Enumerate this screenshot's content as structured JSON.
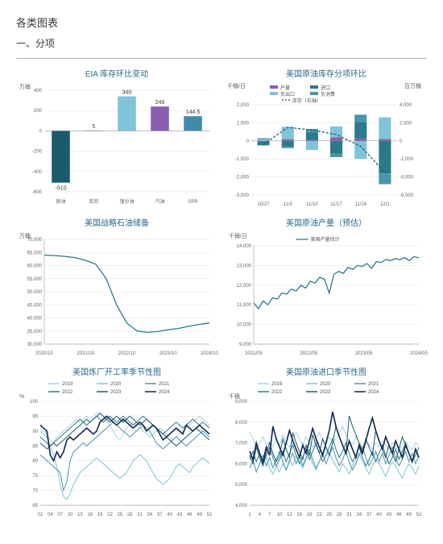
{
  "page": {
    "title": "各类图表",
    "section": "一、分项"
  },
  "colors": {
    "teal_dark": "#1a5a6e",
    "teal": "#3d8ba8",
    "teal_light": "#7fc4d8",
    "purple": "#8a5fb0",
    "navy": "#0f2850",
    "grid": "#e0e0e0",
    "axis": "#888"
  },
  "chart1": {
    "title": "EIA 库存环比变动",
    "ylabel": "万桶",
    "categories": [
      "原油",
      "库欣",
      "馏分油",
      "汽油",
      "SPR"
    ],
    "values": [
      -510,
      5,
      340,
      240,
      144.5
    ],
    "colors": [
      "#1a5a6e",
      "#3d8ba8",
      "#7fc4d8",
      "#8a5fb0",
      "#3d8ba8"
    ],
    "ylim": [
      -600,
      400
    ],
    "ytick_step": 200
  },
  "chart2": {
    "title": "美国原油库存分项环比",
    "ylabel_left": "千桶/日",
    "ylabel_right": "百万桶",
    "legend": [
      "产量",
      "进口",
      "负出口",
      "负消费",
      "库存（右轴）"
    ],
    "legend_colors": [
      "#8a5fb0",
      "#2a7a8a",
      "#7fc4d8",
      "#4a94ac",
      "#1a5a6e"
    ],
    "x_labels": [
      "10/27",
      "11/3",
      "11/10",
      "11/17",
      "11/24",
      "12/1"
    ],
    "ylim_left": [
      -3000,
      2000
    ],
    "ytick_left": 1000,
    "ylim_right": [
      -6000,
      4000
    ],
    "ytick_right": 2000,
    "series_prod": [
      -50,
      80,
      60,
      200,
      150,
      100
    ],
    "series_import": [
      -200,
      -300,
      400,
      -700,
      900,
      -1800
    ],
    "series_negexp": [
      100,
      700,
      -500,
      600,
      -1000,
      1200
    ],
    "series_negcons": [
      50,
      -100,
      200,
      -200,
      400,
      -600
    ],
    "inventory_right": [
      -400,
      1500,
      1200,
      700,
      -600,
      -3500
    ]
  },
  "chart3": {
    "title": "美国战略石油储备",
    "ylabel": "万桶",
    "ylim": [
      30000,
      70000
    ],
    "ytick_step": 5000,
    "x_labels": [
      "2020/10",
      "2021/10",
      "2022/10",
      "2023/10",
      "2024/10"
    ],
    "color": "#2a7a8a",
    "data": [
      64000,
      63800,
      63500,
      63000,
      62000,
      60500,
      55000,
      45000,
      38000,
      35000,
      34500,
      34800,
      35500,
      36000,
      36800,
      37500,
      38100
    ]
  },
  "chart4": {
    "title": "美国原油产量（预估）",
    "ylabel": "千桶/日",
    "legend": [
      "美国产量估计"
    ],
    "ylim": [
      9000,
      14000
    ],
    "ytick_step": 1000,
    "x_labels": [
      "2021/05",
      "2022/05",
      "2023/05",
      "2024/05"
    ],
    "color": "#2a7a8a",
    "data": [
      11100,
      10800,
      11200,
      11000,
      11350,
      11300,
      11600,
      11550,
      11800,
      11700,
      12000,
      11850,
      12200,
      12100,
      12400,
      12300,
      11600,
      12550,
      12700,
      12600,
      12900,
      12800,
      13000,
      12950,
      13100,
      12850,
      13200,
      13150,
      13300,
      13250,
      13350,
      13300,
      13400,
      13250,
      13450,
      13380
    ]
  },
  "chart5": {
    "title": "美国炼厂开工率季节性图",
    "ylabel": "%",
    "legend": [
      "2019",
      "2020",
      "2021",
      "2022",
      "2023",
      "2024"
    ],
    "legend_colors": [
      "#a8d5e0",
      "#7fc4d8",
      "#4a94ac",
      "#2a7a8a",
      "#1a5a6e",
      "#0f2850"
    ],
    "ylim": [
      65,
      100
    ],
    "ytick_step": 5,
    "x_labels": [
      "01",
      "04",
      "07",
      "10",
      "13",
      "16",
      "19",
      "22",
      "25",
      "28",
      "31",
      "34",
      "37",
      "40",
      "43",
      "46",
      "49",
      "52"
    ],
    "series": {
      "2019": [
        91,
        90,
        89,
        87,
        86,
        88,
        89,
        90,
        91,
        92,
        93,
        94,
        93,
        94,
        95,
        94,
        95,
        96,
        96,
        95,
        93,
        92,
        90,
        88,
        87,
        89,
        91,
        92,
        93,
        92,
        91,
        90,
        89,
        88,
        89,
        90,
        91,
        90,
        89,
        88,
        87,
        88,
        89,
        90,
        91,
        92,
        93,
        94,
        95,
        94,
        93,
        92
      ],
      "2020": [
        90,
        89,
        88,
        85,
        82,
        78,
        72,
        68,
        67,
        69,
        72,
        74,
        76,
        77,
        78,
        79,
        80,
        81,
        80,
        79,
        78,
        77,
        76,
        75,
        74,
        75,
        76,
        78,
        80,
        81,
        82,
        81,
        80,
        78,
        76,
        74,
        73,
        72,
        73,
        74,
        76,
        78,
        79,
        78,
        77,
        76,
        78,
        79,
        80,
        81,
        80,
        79
      ],
      "2021": [
        82,
        81,
        80,
        79,
        78,
        77,
        76,
        70,
        73,
        80,
        83,
        84,
        85,
        86,
        85,
        86,
        87,
        88,
        89,
        90,
        91,
        92,
        93,
        92,
        91,
        90,
        89,
        88,
        89,
        90,
        91,
        92,
        91,
        90,
        88,
        86,
        85,
        84,
        85,
        86,
        87,
        88,
        87,
        86,
        85,
        86,
        87,
        88,
        89,
        90,
        89,
        88
      ],
      "2022": [
        88,
        87,
        86,
        85,
        86,
        87,
        88,
        89,
        90,
        91,
        92,
        93,
        94,
        93,
        92,
        93,
        94,
        95,
        94,
        93,
        94,
        95,
        94,
        93,
        94,
        95,
        94,
        93,
        92,
        93,
        94,
        95,
        94,
        93,
        92,
        91,
        90,
        89,
        90,
        91,
        92,
        93,
        92,
        91,
        92,
        93,
        94,
        93,
        92,
        93,
        92,
        91
      ],
      "2023": [
        86,
        85,
        84,
        85,
        86,
        85,
        86,
        87,
        88,
        89,
        90,
        91,
        92,
        93,
        94,
        93,
        94,
        95,
        96,
        95,
        94,
        93,
        94,
        95,
        94,
        93,
        94,
        95,
        94,
        93,
        92,
        93,
        94,
        93,
        92,
        91,
        90,
        89,
        88,
        87,
        86,
        85,
        86,
        87,
        88,
        89,
        90,
        91,
        90,
        89,
        88,
        87
      ],
      "2024": [
        92,
        91,
        90,
        82,
        80,
        83,
        81,
        83,
        87,
        88,
        87,
        88,
        89,
        90,
        91,
        90,
        89,
        90,
        93,
        94,
        95,
        94,
        93,
        92,
        93,
        94,
        93,
        92,
        91,
        92,
        93,
        92,
        90,
        91,
        92,
        91,
        89,
        87,
        88,
        89,
        90,
        91,
        90,
        89,
        92,
        91,
        90,
        91,
        92,
        91,
        90,
        89
      ]
    }
  },
  "chart6": {
    "title": "美国原油进口季节性图",
    "ylabel": "千桶",
    "legend": [
      "2019",
      "2020",
      "2021",
      "2022",
      "2023",
      "2024"
    ],
    "legend_colors": [
      "#a8d5e0",
      "#7fc4d8",
      "#4a94ac",
      "#2a7a8a",
      "#1a5a6e",
      "#0f2850"
    ],
    "ylim": [
      4000,
      9000
    ],
    "ytick_step": 1000,
    "x_labels": [
      "1",
      "4",
      "7",
      "10",
      "13",
      "16",
      "19",
      "22",
      "25",
      "28",
      "31",
      "34",
      "37",
      "40",
      "43",
      "46",
      "49",
      "52"
    ],
    "series": {
      "2019": [
        7500,
        7200,
        6800,
        7000,
        7300,
        6900,
        7100,
        6800,
        7200,
        6900,
        7400,
        7000,
        6800,
        7100,
        7500,
        7200,
        6900,
        7300,
        7000,
        6800,
        7200,
        7500,
        7100,
        6900,
        7300,
        7000,
        7200,
        7500,
        7800,
        7400,
        7100,
        6900,
        7300,
        7000,
        6800,
        7100,
        6900,
        6700,
        7000,
        6800,
        7100,
        6900,
        6700,
        7000,
        6800,
        6600,
        6900,
        7100,
        6800,
        6700,
        7000,
        6900
      ],
      "2020": [
        6500,
        6200,
        6800,
        6400,
        6000,
        6300,
        5800,
        5500,
        5900,
        5600,
        6000,
        5700,
        6200,
        5900,
        6400,
        6100,
        5800,
        6200,
        6500,
        6000,
        5700,
        6100,
        6400,
        6800,
        6500,
        6200,
        5900,
        5600,
        6000,
        5800,
        5500,
        5900,
        6200,
        6500,
        6100,
        5800,
        5500,
        5900,
        6200,
        6000,
        5700,
        5400,
        5800,
        6100,
        5900,
        5600,
        5300,
        5700,
        6000,
        5800,
        5500,
        5900
      ],
      "2021": [
        5800,
        6200,
        5600,
        6000,
        6400,
        5900,
        6300,
        5800,
        6200,
        6600,
        6100,
        5700,
        6100,
        6500,
        6000,
        6400,
        5900,
        6300,
        6700,
        6200,
        5800,
        6100,
        6500,
        6000,
        6400,
        6800,
        6300,
        5900,
        6200,
        6600,
        6100,
        5700,
        6000,
        6400,
        6800,
        6300,
        5900,
        6200,
        6600,
        6100,
        6500,
        6000,
        6400,
        6800,
        6300,
        5900,
        6200,
        6600,
        6100,
        6500,
        6000,
        6400
      ],
      "2022": [
        6200,
        6600,
        6100,
        6500,
        6000,
        6400,
        6800,
        6300,
        5900,
        6200,
        6600,
        6100,
        6500,
        6900,
        6400,
        6000,
        6300,
        6700,
        6200,
        6600,
        7000,
        6500,
        6100,
        6400,
        6800,
        7200,
        6700,
        6300,
        6600,
        7000,
        6500,
        6100,
        6400,
        6800,
        6300,
        5900,
        6200,
        6600,
        6100,
        6500,
        6900,
        6400,
        6000,
        6300,
        6700,
        6200,
        6600,
        7000,
        6500,
        6100,
        6400,
        6800
      ],
      "2023": [
        6400,
        6000,
        6800,
        6300,
        5900,
        6600,
        7000,
        6500,
        6100,
        6400,
        7200,
        6700,
        6300,
        7500,
        7000,
        6600,
        6200,
        6900,
        6400,
        7400,
        6900,
        6500,
        7200,
        6800,
        6400,
        7000,
        7800,
        7300,
        6900,
        6500,
        8300,
        7800,
        7400,
        7000,
        6600,
        7200,
        6800,
        6400,
        7600,
        7100,
        6700,
        6300,
        6900,
        6500,
        6100,
        6700,
        7300,
        6900,
        6500,
        6100,
        6700,
        6300
      ],
      "2024": [
        6600,
        6200,
        7000,
        6500,
        6100,
        6800,
        6400,
        7800,
        7200,
        6800,
        6400,
        7000,
        7600,
        7100,
        6700,
        6300,
        6900,
        6500,
        7100,
        7700,
        7200,
        6800,
        6400,
        7000,
        7600,
        8500,
        7800,
        7300,
        6900,
        6500,
        7100,
        6700,
        6300,
        6900,
        6500,
        7100,
        7700,
        8200,
        7600,
        7100,
        6700,
        7300,
        6900,
        6500,
        7100,
        6700,
        6300,
        6900,
        6500,
        6100,
        6700,
        6300
      ]
    }
  }
}
